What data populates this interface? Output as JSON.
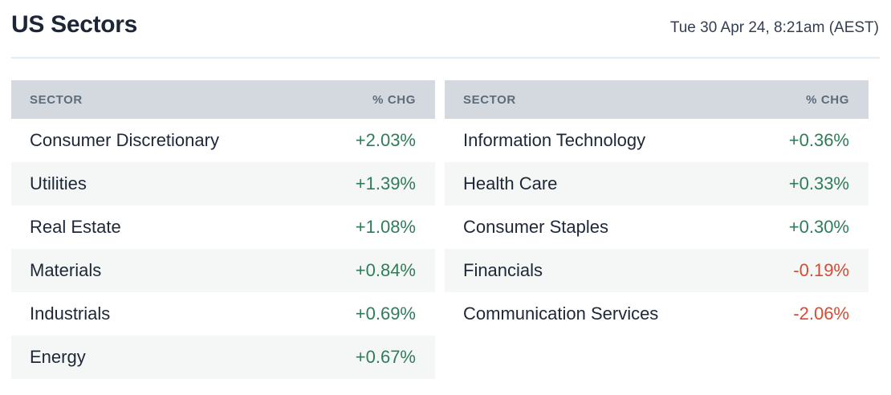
{
  "page": {
    "title": "US Sectors",
    "timestamp": "Tue 30 Apr 24, 8:21am (AEST)"
  },
  "chart_data": [
    {
      "type": "table",
      "title": "US Sectors",
      "columns": [
        "SECTOR",
        "% CHG"
      ],
      "rows": [
        {
          "sector": "Consumer Discretionary",
          "change": "+2.03%",
          "change_value": 2.03,
          "direction": "up"
        },
        {
          "sector": "Utilities",
          "change": "+1.39%",
          "change_value": 1.39,
          "direction": "up"
        },
        {
          "sector": "Real Estate",
          "change": "+1.08%",
          "change_value": 1.08,
          "direction": "up"
        },
        {
          "sector": "Materials",
          "change": "+0.84%",
          "change_value": 0.84,
          "direction": "up"
        },
        {
          "sector": "Industrials",
          "change": "+0.69%",
          "change_value": 0.69,
          "direction": "up"
        },
        {
          "sector": "Energy",
          "change": "+0.67%",
          "change_value": 0.67,
          "direction": "up"
        }
      ]
    },
    {
      "type": "table",
      "title": "US Sectors (continued)",
      "columns": [
        "SECTOR",
        "% CHG"
      ],
      "rows": [
        {
          "sector": "Information Technology",
          "change": "+0.36%",
          "change_value": 0.36,
          "direction": "up"
        },
        {
          "sector": "Health Care",
          "change": "+0.33%",
          "change_value": 0.33,
          "direction": "up"
        },
        {
          "sector": "Consumer Staples",
          "change": "+0.30%",
          "change_value": 0.3,
          "direction": "up"
        },
        {
          "sector": "Financials",
          "change": "-0.19%",
          "change_value": -0.19,
          "direction": "down"
        },
        {
          "sector": "Communication Services",
          "change": "-2.06%",
          "change_value": -2.06,
          "direction": "down"
        }
      ]
    }
  ],
  "colors": {
    "positive": "#2e7d59",
    "negative": "#d74b33",
    "header_bg": "#d4d9df",
    "header_text": "#5d6b7a",
    "stripe": "#f5f7f6",
    "text": "#1d2738",
    "title": "#1c2637",
    "timestamp": "#333e52",
    "divider": "#e3ebf3"
  }
}
